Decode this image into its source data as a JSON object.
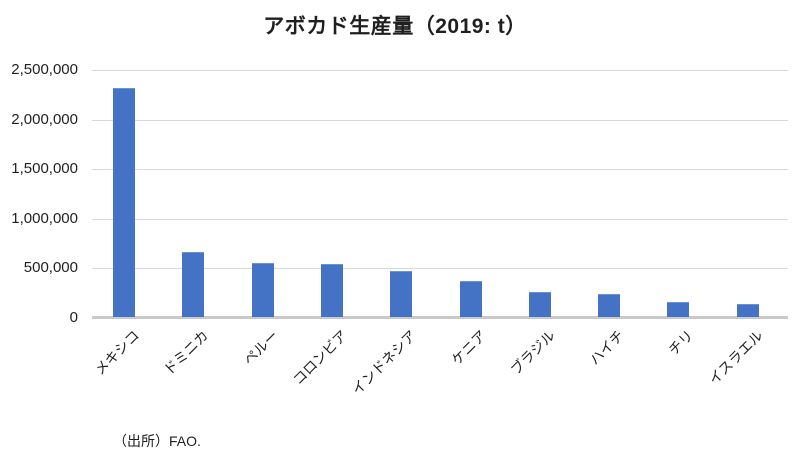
{
  "chart_data": {
    "type": "bar",
    "title": "アボカド生産量（2019: t）",
    "categories": [
      "メキシコ",
      "ドミニカ",
      "ペルー",
      "コロンビア",
      "インドネシア",
      "ケニア",
      "ブラジル",
      "ハイチ",
      "チリ",
      "イスラエル"
    ],
    "values": [
      2300000,
      650000,
      530000,
      525000,
      450000,
      350000,
      240000,
      220000,
      145000,
      125000
    ],
    "xlabel": "",
    "ylabel": "",
    "ylim": [
      0,
      2500000
    ],
    "y_tick_interval": 500000,
    "y_tick_labels": [
      "0",
      "500,000",
      "1,000,000",
      "1,500,000",
      "2,000,000",
      "2,500,000"
    ],
    "grid": true,
    "legend": false,
    "bar_color": "#4472C4",
    "gridline_color": "#D9D9D9",
    "axis_line_color": "#C9C9C9",
    "text_color": "#1F1F1F"
  },
  "footer": {
    "source": "（出所）FAO."
  }
}
